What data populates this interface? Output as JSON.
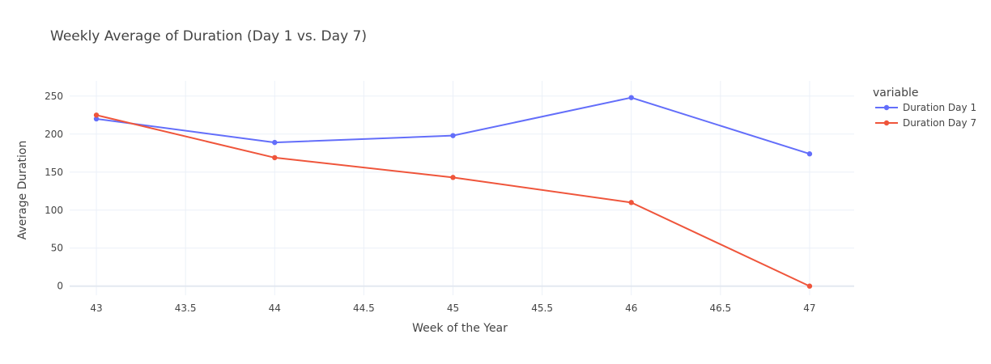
{
  "chart_data": {
    "type": "line",
    "title": "Weekly Average of Duration (Day 1 vs. Day 7)",
    "xlabel": "Week of the Year",
    "ylabel": "Average Duration",
    "xlim": [
      42.85,
      47.25
    ],
    "ylim": [
      -12,
      270
    ],
    "x_ticks": [
      43,
      43.5,
      44,
      44.5,
      45,
      45.5,
      46,
      46.5,
      47
    ],
    "x_tick_labels": [
      "43",
      "43.5",
      "44",
      "44.5",
      "45",
      "45.5",
      "46",
      "46.5",
      "47"
    ],
    "y_ticks": [
      0,
      50,
      100,
      150,
      200,
      250
    ],
    "y_tick_labels": [
      "0",
      "50",
      "100",
      "150",
      "200",
      "250"
    ],
    "grid": true,
    "legend": {
      "title": "variable",
      "placement": "right"
    },
    "x": [
      43,
      44,
      45,
      46,
      47
    ],
    "series": [
      {
        "name": "Duration Day 1",
        "color": "#636efa",
        "values": [
          220,
          189,
          198,
          248,
          174
        ]
      },
      {
        "name": "Duration Day 7",
        "color": "#ef553b",
        "values": [
          225,
          169,
          143,
          110,
          0
        ]
      }
    ]
  }
}
